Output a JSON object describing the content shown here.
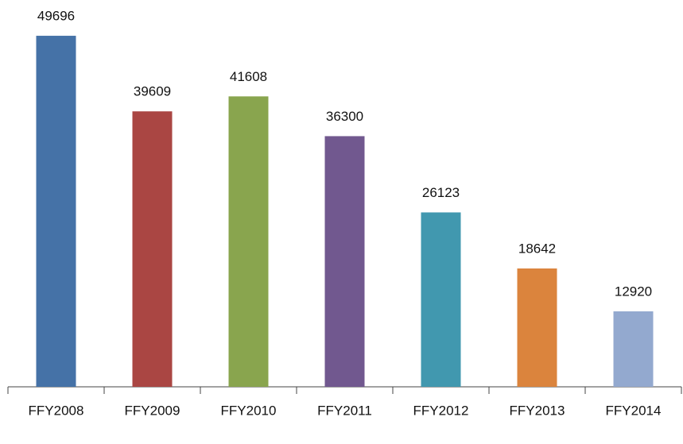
{
  "chart_data": {
    "type": "bar",
    "categories": [
      "FFY2008",
      "FFY2009",
      "FFY2010",
      "FFY2011",
      "FFY2012",
      "FFY2013",
      "FFY2014"
    ],
    "values": [
      49696,
      39609,
      41608,
      36300,
      26123,
      18642,
      12920
    ],
    "colors": [
      "#4572a7",
      "#aa4643",
      "#89a54e",
      "#71588f",
      "#4198af",
      "#db843d",
      "#93a9cf"
    ],
    "ylim": [
      2850,
      52350
    ]
  }
}
